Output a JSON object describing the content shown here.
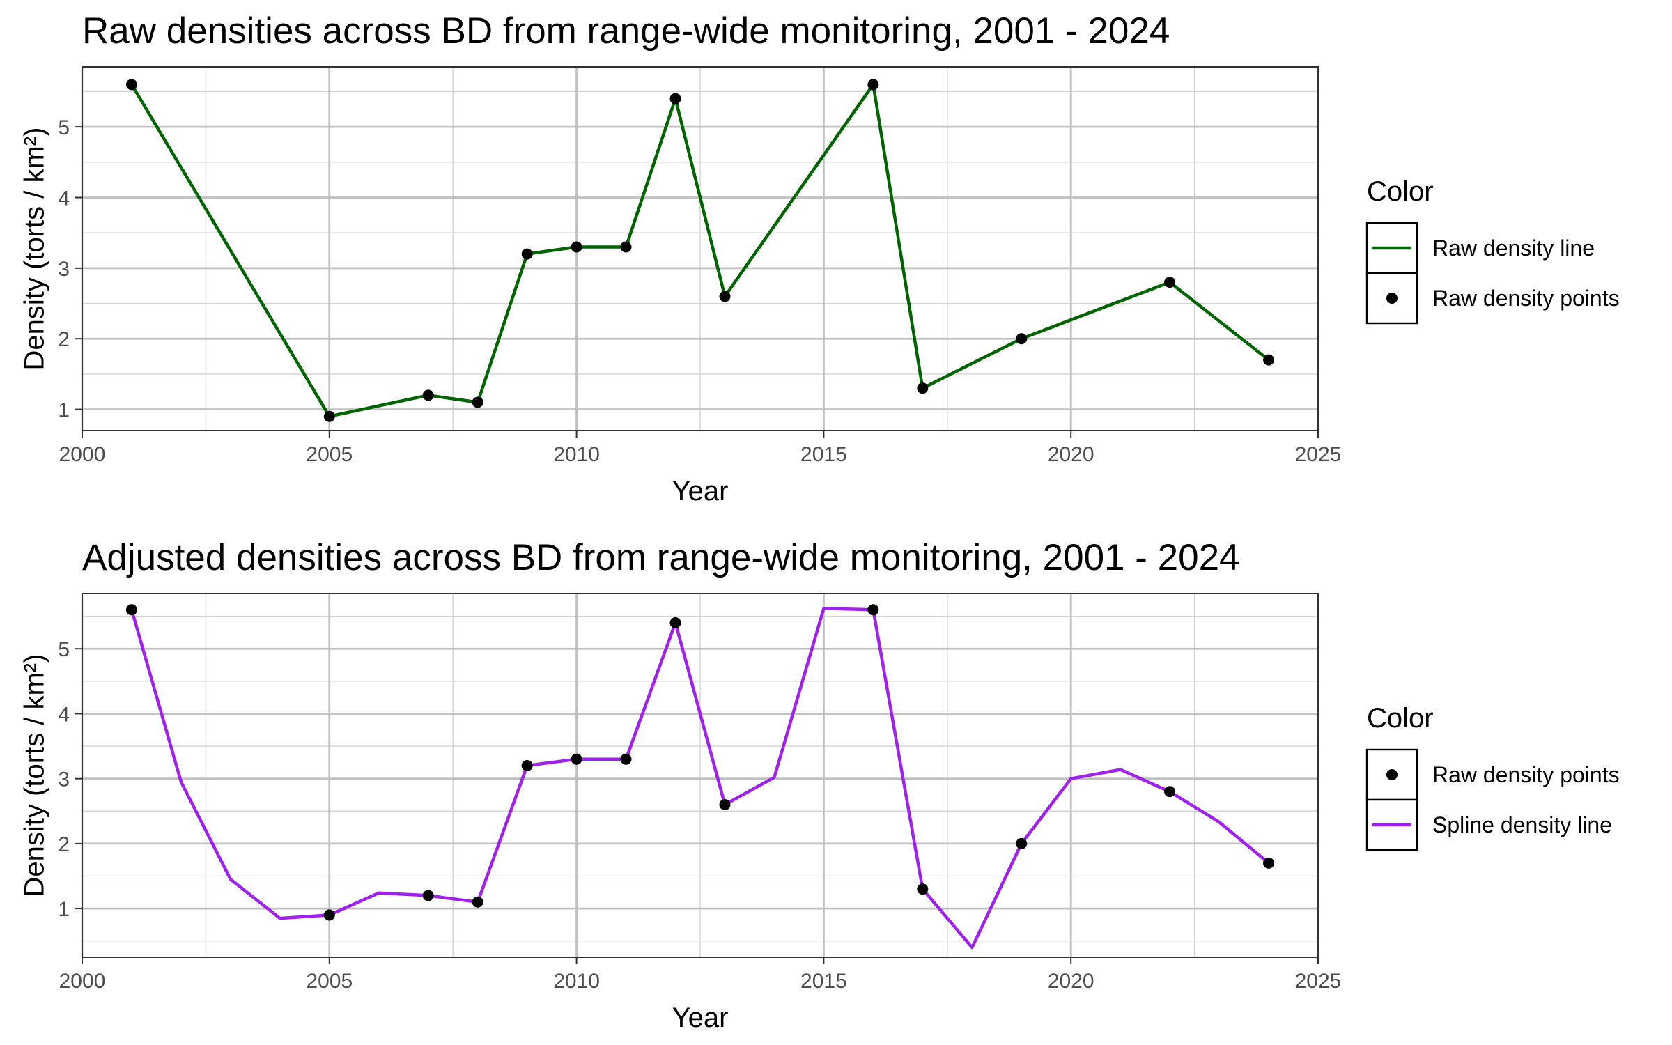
{
  "chart_data": [
    {
      "type": "line",
      "title": "Raw densities across BD from range-wide monitoring, 2001 - 2024",
      "xlabel": "Year",
      "ylabel": "Density (torts / km²)",
      "xlim": [
        2000,
        2025
      ],
      "ylim": [
        0.7,
        5.85
      ],
      "xticks": [
        2000,
        2005,
        2010,
        2015,
        2020,
        2025
      ],
      "yticks": [
        1,
        2,
        3,
        4,
        5
      ],
      "grid": true,
      "legend_position": "right",
      "legend_title": "Color",
      "colors": {
        "line": "#006400",
        "points": "#000000"
      },
      "series": [
        {
          "name": "Raw density line",
          "kind": "line",
          "x": [
            2001,
            2005,
            2007,
            2008,
            2009,
            2010,
            2011,
            2012,
            2013,
            2016,
            2017,
            2019,
            2022,
            2024
          ],
          "y": [
            5.6,
            0.9,
            1.2,
            1.1,
            3.2,
            3.3,
            3.3,
            5.4,
            2.6,
            5.6,
            1.3,
            2.0,
            2.8,
            1.7
          ]
        },
        {
          "name": "Raw density points",
          "kind": "points",
          "x": [
            2001,
            2005,
            2007,
            2008,
            2009,
            2010,
            2011,
            2012,
            2013,
            2016,
            2017,
            2019,
            2022,
            2024
          ],
          "y": [
            5.6,
            0.9,
            1.2,
            1.1,
            3.2,
            3.3,
            3.3,
            5.4,
            2.6,
            5.6,
            1.3,
            2.0,
            2.8,
            1.7
          ]
        }
      ],
      "legend_items": [
        {
          "label": "Raw density line",
          "kind": "line"
        },
        {
          "label": "Raw density points",
          "kind": "point"
        }
      ]
    },
    {
      "type": "line",
      "title": "Adjusted densities across BD from range-wide monitoring, 2001 - 2024",
      "xlabel": "Year",
      "ylabel": "Density (torts / km²)",
      "xlim": [
        2000,
        2025
      ],
      "ylim": [
        0.25,
        5.85
      ],
      "xticks": [
        2000,
        2005,
        2010,
        2015,
        2020,
        2025
      ],
      "yticks": [
        1,
        2,
        3,
        4,
        5
      ],
      "grid": true,
      "legend_position": "right",
      "legend_title": "Color",
      "colors": {
        "line": "#a020f0",
        "points": "#000000"
      },
      "series": [
        {
          "name": "Spline density line",
          "kind": "line",
          "x": [
            2001,
            2002,
            2003,
            2004,
            2005,
            2006,
            2007,
            2008,
            2009,
            2010,
            2011,
            2012,
            2013,
            2014,
            2015,
            2016,
            2017,
            2018,
            2019,
            2020,
            2021,
            2022,
            2023,
            2024
          ],
          "y": [
            5.6,
            2.95,
            1.45,
            0.85,
            0.9,
            1.24,
            1.2,
            1.1,
            3.2,
            3.3,
            3.3,
            5.4,
            2.6,
            3.02,
            5.62,
            5.6,
            1.3,
            0.4,
            2.0,
            3.0,
            3.14,
            2.8,
            2.33,
            1.7
          ]
        },
        {
          "name": "Raw density points",
          "kind": "points",
          "x": [
            2001,
            2005,
            2007,
            2008,
            2009,
            2010,
            2011,
            2012,
            2013,
            2016,
            2017,
            2019,
            2022,
            2024
          ],
          "y": [
            5.6,
            0.9,
            1.2,
            1.1,
            3.2,
            3.3,
            3.3,
            5.4,
            2.6,
            5.6,
            1.3,
            2.0,
            2.8,
            1.7
          ]
        }
      ],
      "legend_items": [
        {
          "label": "Raw density points",
          "kind": "point"
        },
        {
          "label": "Spline density line",
          "kind": "line"
        }
      ]
    }
  ]
}
